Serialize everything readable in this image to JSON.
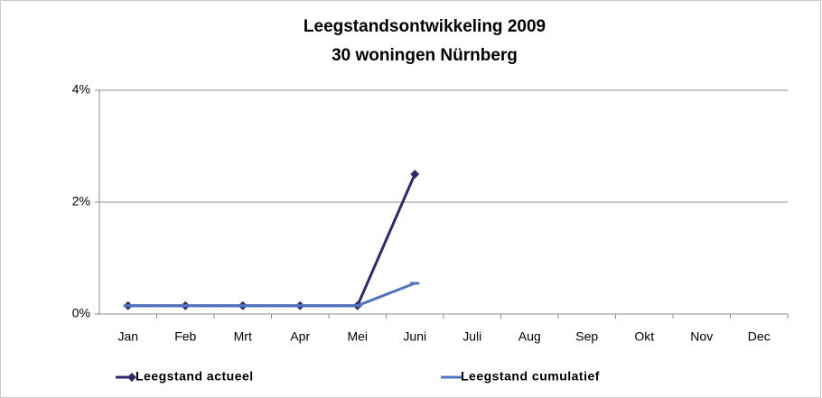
{
  "chart_data": {
    "type": "line",
    "title": "Leegstandsontwikkeling 2009",
    "subtitle": "30 woningen Nürnberg",
    "categories": [
      "Jan",
      "Feb",
      "Mrt",
      "Apr",
      "Mei",
      "Juni",
      "Juli",
      "Aug",
      "Sep",
      "Okt",
      "Nov",
      "Dec"
    ],
    "series": [
      {
        "name": "Leegstand actueel",
        "color": "#2e2a6e",
        "marker": "diamond",
        "values": [
          0.15,
          0.15,
          0.15,
          0.15,
          0.15,
          2.5,
          null,
          null,
          null,
          null,
          null,
          null
        ]
      },
      {
        "name": "Leegstand cumulatief",
        "color": "#4f74c0",
        "marker": "dash",
        "values": [
          0.15,
          0.15,
          0.15,
          0.15,
          0.15,
          0.55,
          null,
          null,
          null,
          null,
          null,
          null
        ]
      }
    ],
    "ylim": [
      0,
      4
    ],
    "yticks": [
      {
        "value": 0,
        "label": "0%"
      },
      {
        "value": 2,
        "label": "2%"
      },
      {
        "value": 4,
        "label": "4%"
      }
    ],
    "grid": true,
    "legend": "bottom"
  }
}
